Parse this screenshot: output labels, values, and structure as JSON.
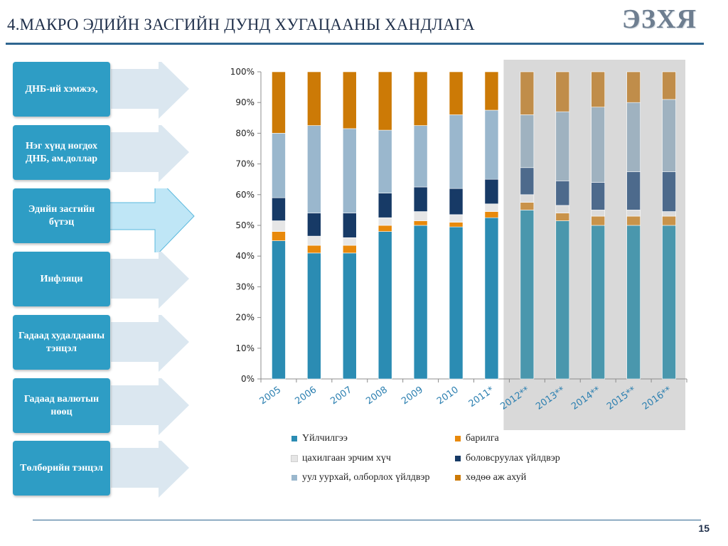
{
  "header": {
    "title": "4.МАКРО ЭДИЙН ЗАСГИЙН ДУНД ХУГАЦААНЫ ХАНДЛАГА",
    "logo_text": "ЭЗХЯ"
  },
  "footer": {
    "page_number": "15"
  },
  "nav": {
    "items": [
      {
        "label": "ДНБ-ий хэмжээ,",
        "active": false
      },
      {
        "label": "Нэг хүнд ногдох ДНБ, ам.доллар",
        "active": false
      },
      {
        "label": "Эдийн засгийн бүтэц",
        "active": true
      },
      {
        "label": "Инфляци",
        "active": false
      },
      {
        "label": "Гадаад худалдааны тэнцэл",
        "active": false
      },
      {
        "label": "Гадаад валютын нөөц",
        "active": false
      },
      {
        "label": "Төлбөрийн тэнцэл",
        "active": false
      }
    ]
  },
  "colors": {
    "nav_box": "#2e9dc5",
    "arrow_inactive": "#dbe7f0",
    "arrow_active": "#bfe6f6",
    "forecast_bg": "#d9d9d9"
  },
  "chart_data": {
    "type": "bar",
    "stacked": true,
    "percent": true,
    "categories": [
      "2005",
      "2006",
      "2007",
      "2008",
      "2009",
      "2010",
      "2011*",
      "2012**",
      "2013**",
      "2014**",
      "2015**",
      "2016**"
    ],
    "forecast_from_index": 7,
    "ylim": [
      0,
      100
    ],
    "yticks": [
      "0%",
      "10%",
      "20%",
      "30%",
      "40%",
      "50%",
      "60%",
      "70%",
      "80%",
      "90%",
      "100%"
    ],
    "grid": false,
    "legend_position": "bottom",
    "series": [
      {
        "name": "Үйлчилгээ",
        "color": "#2b8cb3",
        "forecast_color": "#4a97ad",
        "values": [
          45,
          41,
          41,
          48,
          50,
          49.5,
          52.5,
          55,
          51.5,
          50,
          50,
          50
        ]
      },
      {
        "name": "барилга",
        "color": "#e8890b",
        "forecast_color": "#c9934a",
        "values": [
          3,
          2.5,
          2.5,
          2,
          1.5,
          1.5,
          2,
          2.5,
          2.5,
          3,
          3,
          3
        ]
      },
      {
        "name": "цахилгаан эрчим хүч",
        "color": "#e6e6e6",
        "forecast_color": "#dcdcdc",
        "values": [
          3.5,
          3,
          2.5,
          2.5,
          3,
          2.5,
          2.5,
          2.5,
          2.5,
          2,
          2,
          1.5
        ]
      },
      {
        "name": "боловсруулах үйлдвэр",
        "color": "#173a66",
        "forecast_color": "#4d6a8c",
        "values": [
          7.5,
          7.5,
          8,
          8,
          8,
          8.5,
          8,
          8.8,
          8,
          9,
          12.5,
          13
        ]
      },
      {
        "name": "уул уурхай, олборлох үйлдвэр",
        "color": "#9ab7cd",
        "forecast_color": "#9fb2c0",
        "values": [
          21,
          28.5,
          27.5,
          20.5,
          20,
          24,
          22.5,
          17.2,
          22.5,
          24.5,
          22.5,
          23.5
        ]
      },
      {
        "name": "хөдөө аж ахуй",
        "color": "#cc7a06",
        "forecast_color": "#c08d4a",
        "values": [
          20,
          17.5,
          18.5,
          19,
          17.5,
          14,
          12.5,
          14,
          13,
          11.5,
          10,
          9
        ]
      }
    ]
  }
}
